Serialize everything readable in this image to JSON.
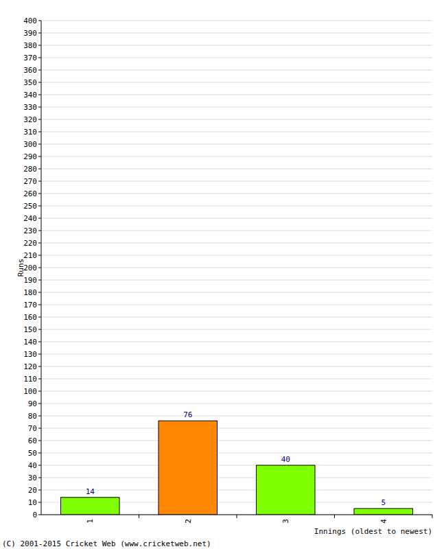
{
  "chart_data": {
    "type": "bar",
    "x_label": "Innings (oldest to newest)",
    "y_label": "Runs",
    "annotations": [
      "(C) 2001-2015 Cricket Web (www.cricketweb.net)"
    ],
    "categories": [
      "1",
      "2",
      "3",
      "4"
    ],
    "values": [
      14,
      76,
      40,
      5
    ],
    "colors": [
      "#80ff00",
      "#ff8800",
      "#80ff00",
      "#80ff00"
    ],
    "data_labels": true,
    "grid": true,
    "ylim": [
      0,
      400
    ],
    "yticks": [
      0,
      10,
      20,
      30,
      40,
      50,
      60,
      70,
      80,
      90,
      100,
      110,
      120,
      130,
      140,
      150,
      160,
      170,
      180,
      190,
      200,
      210,
      220,
      230,
      240,
      250,
      260,
      270,
      280,
      290,
      300,
      310,
      320,
      330,
      340,
      350,
      360,
      370,
      380,
      390,
      400
    ]
  }
}
